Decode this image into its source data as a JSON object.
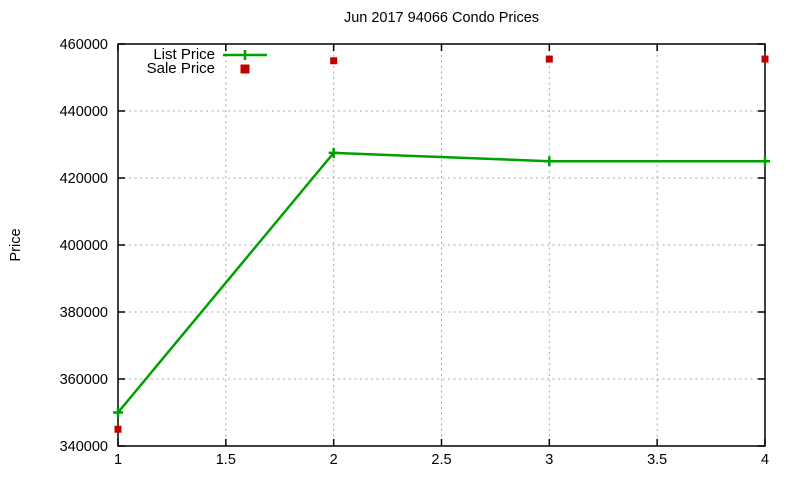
{
  "chart_data": {
    "type": "line",
    "title": "Jun 2017 94066 Condo Prices",
    "xlabel": "",
    "ylabel": "Price",
    "xlim": [
      1,
      4
    ],
    "ylim": [
      340000,
      460000
    ],
    "grid": true,
    "legend_position": "top-left-inside",
    "background_color": "#ffffff",
    "axis_color": "#000000",
    "grid_color": "#a8a8a8",
    "x": [
      1,
      2,
      3,
      4
    ],
    "series": [
      {
        "name": "List Price",
        "style": "line-with-plus-markers",
        "marker": "plus",
        "color": "#00a000",
        "values": [
          350000,
          427500,
          425000,
          425000
        ]
      },
      {
        "name": "Sale Price",
        "style": "scatter",
        "marker": "square",
        "color": "#c00000",
        "values": [
          345000,
          455000,
          455500,
          455500
        ]
      }
    ],
    "xticks": {
      "values": [
        1,
        1.5,
        2,
        2.5,
        3,
        3.5,
        4
      ],
      "labels": [
        "1",
        "1.5",
        "2",
        "2.5",
        "3",
        "3.5",
        "4"
      ]
    },
    "yticks": {
      "values": [
        340000,
        360000,
        380000,
        400000,
        420000,
        440000,
        460000
      ],
      "labels": [
        "340000",
        "360000",
        "380000",
        "400000",
        "420000",
        "440000",
        "460000"
      ]
    }
  }
}
